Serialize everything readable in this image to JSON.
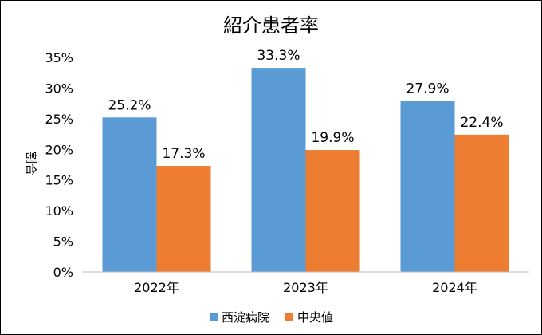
{
  "chart_data": {
    "type": "bar",
    "title": "紹介患者率",
    "ylabel": "割合",
    "xlabel": "",
    "categories": [
      "2022年",
      "2023年",
      "2024年"
    ],
    "series": [
      {
        "name": "西淀病院",
        "values": [
          25.2,
          33.3,
          27.9
        ],
        "labels": [
          "25.2%",
          "33.3%",
          "27.9%"
        ],
        "color": "#5B9BD5"
      },
      {
        "name": "中央値",
        "values": [
          17.3,
          19.9,
          22.4
        ],
        "labels": [
          "17.3%",
          "19.9%",
          "22.4%"
        ],
        "color": "#ED7D31"
      }
    ],
    "ylim": [
      0,
      35
    ],
    "yticks": [
      0,
      5,
      10,
      15,
      20,
      25,
      30,
      35
    ],
    "ytick_labels": [
      "0%",
      "5%",
      "10%",
      "15%",
      "20%",
      "25%",
      "30%",
      "35%"
    ],
    "grid": false,
    "legend_position": "bottom"
  }
}
